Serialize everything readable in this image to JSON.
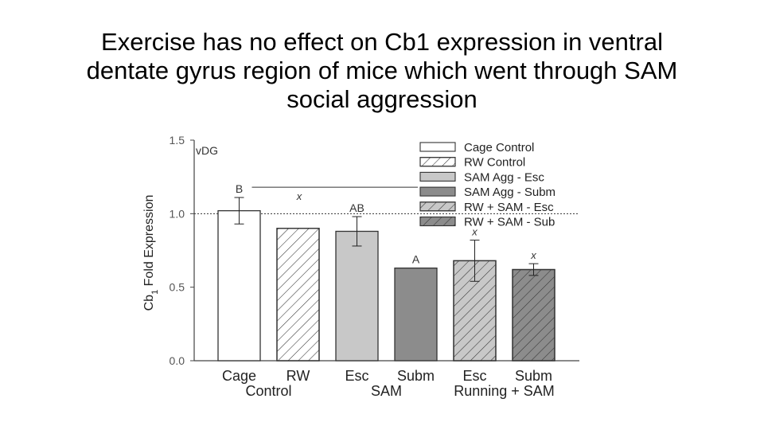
{
  "title_lines": [
    "Exercise has no effect on Cb1 expression in ventral",
    "dentate gyrus region of mice which went through SAM",
    "social aggression"
  ],
  "chart_data": {
    "type": "bar",
    "panel_label": "vDG",
    "ylabel_main": "Cb",
    "ylabel_sub": "1",
    "ylabel_rest": " Fold Expression",
    "ylim": [
      0,
      1.5
    ],
    "yticks": [
      "0.0",
      "0.5",
      "1.0",
      "1.5"
    ],
    "reference_line": 1.0,
    "categories": [
      "Cage",
      "RW",
      "Esc",
      "Subm",
      "Esc",
      "Subm"
    ],
    "groups": [
      {
        "label": "Control",
        "span": [
          0,
          1
        ]
      },
      {
        "label": "SAM",
        "span": [
          2,
          3
        ]
      },
      {
        "label": "Running + SAM",
        "span": [
          4,
          5
        ]
      }
    ],
    "series": [
      {
        "name": "Cage Control",
        "value": 1.02,
        "error": 0.09,
        "fill": "#ffffff",
        "hatch": false,
        "sig": "B",
        "sig_style": "letter"
      },
      {
        "name": "RW Control",
        "value": 0.9,
        "error": 0,
        "fill": "#ffffff",
        "hatch": true,
        "sig": "",
        "sig_style": ""
      },
      {
        "name": "SAM Agg - Esc",
        "value": 0.88,
        "error": 0.1,
        "fill": "#c8c8c8",
        "hatch": false,
        "sig": "AB",
        "sig_style": "letter"
      },
      {
        "name": "SAM Agg - Subm",
        "value": 0.63,
        "error": 0,
        "fill": "#8c8c8c",
        "hatch": false,
        "sig": "A",
        "sig_style": "letter"
      },
      {
        "name": "RW + SAM - Esc",
        "value": 0.68,
        "error": 0.14,
        "fill": "#c8c8c8",
        "hatch": true,
        "sig": "x",
        "sig_style": "italic"
      },
      {
        "name": "RW + SAM - Sub",
        "value": 0.62,
        "error": 0.04,
        "fill": "#8c8c8c",
        "hatch": true,
        "sig": "x",
        "sig_style": "italic"
      }
    ],
    "bracket_annotation": "x",
    "colors": {
      "axis": "#444444",
      "stroke": "#333333",
      "hatch": "#333333"
    }
  }
}
